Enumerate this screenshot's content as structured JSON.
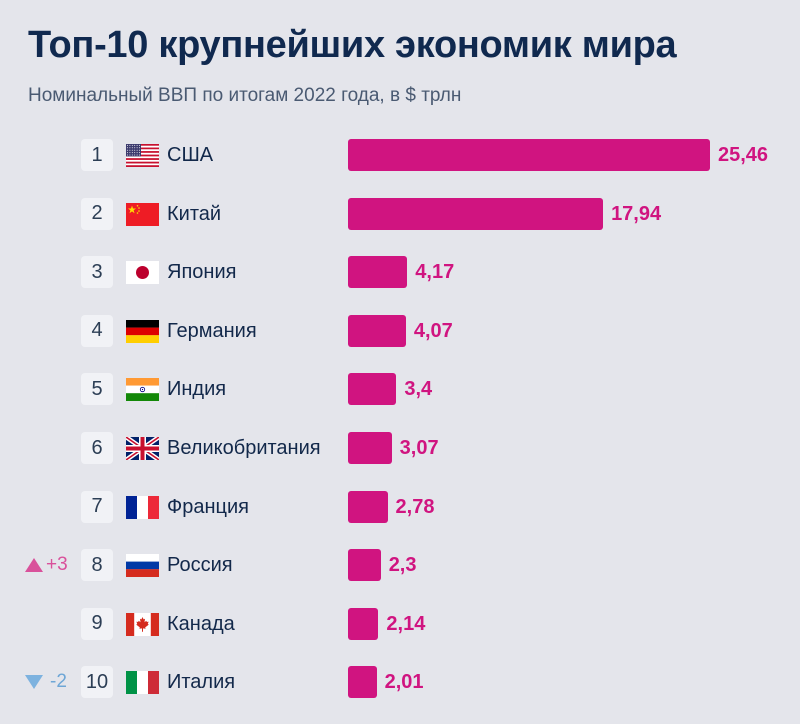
{
  "header": {
    "title": "Топ-10 крупнейших экономик мира",
    "subtitle": "Номинальный ВВП по итогам 2022 года, в $ трлн"
  },
  "colors": {
    "background": "#e4e5eb",
    "bar": "#d01480",
    "title": "#10294f",
    "up": "#d9519b",
    "down": "#7db2df"
  },
  "chart_data": {
    "type": "bar",
    "orientation": "horizontal",
    "title": "Топ-10 крупнейших экономик мира",
    "subtitle": "Номинальный ВВП по итогам 2022 года, в $ трлн",
    "xlabel": "",
    "ylabel": "",
    "xlim": [
      0,
      25.46
    ],
    "grid": false,
    "legend": "none",
    "categories": [
      "США",
      "Китай",
      "Япония",
      "Германия",
      "Индия",
      "Великобритания",
      "Франция",
      "Россия",
      "Канада",
      "Италия"
    ],
    "values": [
      25.46,
      17.94,
      4.17,
      4.07,
      3.4,
      3.07,
      2.78,
      2.3,
      2.14,
      2.01
    ],
    "value_labels": [
      "25,46",
      "17,94",
      "4,17",
      "4,07",
      "3,4",
      "3,07",
      "2,78",
      "2,3",
      "2,14",
      "2,01"
    ],
    "ranks": [
      "1",
      "2",
      "3",
      "4",
      "5",
      "6",
      "7",
      "8",
      "9",
      "10"
    ],
    "rank_changes": [
      {
        "rank": "8",
        "direction": "up",
        "label": "+3"
      },
      {
        "rank": "10",
        "direction": "down",
        "label": "-2"
      }
    ],
    "flags": [
      "us-flag-icon",
      "china-flag-icon",
      "japan-flag-icon",
      "germany-flag-icon",
      "india-flag-icon",
      "uk-flag-icon",
      "france-flag-icon",
      "russia-flag-icon",
      "canada-flag-icon",
      "italy-flag-icon"
    ]
  }
}
